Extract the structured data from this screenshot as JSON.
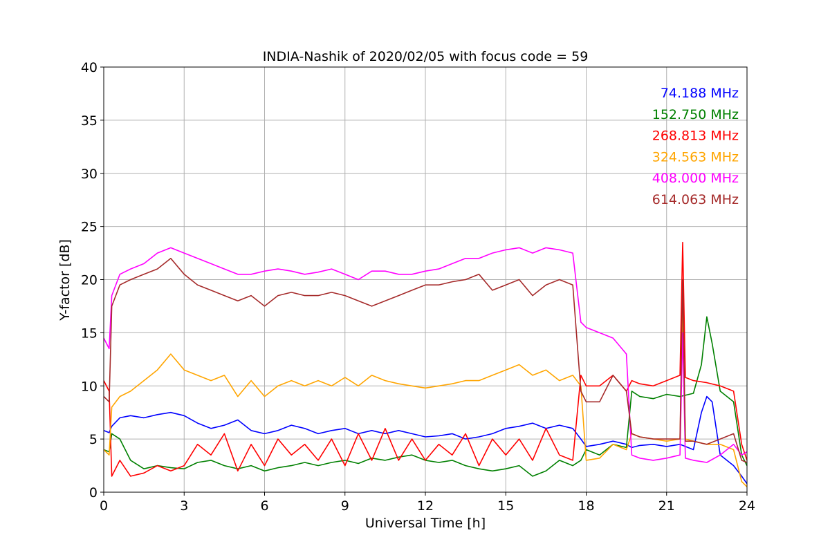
{
  "chart_data": {
    "type": "line",
    "title": "INDIA-Nashik of 2020/02/05 with focus code = 59",
    "xlabel": "Universal Time [h]",
    "ylabel": "Y-factor [dB]",
    "xlim": [
      0,
      24
    ],
    "ylim": [
      0,
      40
    ],
    "xticks": [
      0,
      3,
      6,
      9,
      12,
      15,
      18,
      21,
      24
    ],
    "yticks": [
      0,
      5,
      10,
      15,
      20,
      25,
      30,
      35,
      40
    ],
    "grid": true,
    "legend_position": "top-right",
    "series": [
      {
        "name": "74.188 MHz",
        "color": "#0000ff",
        "x": [
          0,
          0.2,
          0.3,
          0.6,
          1.0,
          1.5,
          2.0,
          2.5,
          3.0,
          3.5,
          4.0,
          4.5,
          5.0,
          5.5,
          6.0,
          6.5,
          7.0,
          7.5,
          8.0,
          8.5,
          9.0,
          9.5,
          10.0,
          10.5,
          11.0,
          11.5,
          12.0,
          12.5,
          13.0,
          13.5,
          14.0,
          14.5,
          15.0,
          15.5,
          16.0,
          16.5,
          17.0,
          17.5,
          17.8,
          18.0,
          18.5,
          19.0,
          19.5,
          19.7,
          20.0,
          20.5,
          21.0,
          21.5,
          22.0,
          22.3,
          22.5,
          22.7,
          23.0,
          23.5,
          23.8,
          24.0
        ],
        "y": [
          5.8,
          5.6,
          6.2,
          7.0,
          7.2,
          7.0,
          7.3,
          7.5,
          7.2,
          6.5,
          6.0,
          6.3,
          6.8,
          5.8,
          5.5,
          5.8,
          6.3,
          6.0,
          5.5,
          5.8,
          6.0,
          5.5,
          5.8,
          5.5,
          5.8,
          5.5,
          5.2,
          5.3,
          5.5,
          5.0,
          5.2,
          5.5,
          6.0,
          6.2,
          6.5,
          6.0,
          6.3,
          6.0,
          5.0,
          4.3,
          4.5,
          4.8,
          4.5,
          4.2,
          4.4,
          4.5,
          4.3,
          4.5,
          4.0,
          7.5,
          9.0,
          8.5,
          3.5,
          2.5,
          1.5,
          0.8
        ]
      },
      {
        "name": "152.750 MHz",
        "color": "#008000",
        "x": [
          0,
          0.2,
          0.3,
          0.6,
          1.0,
          1.5,
          2.0,
          2.5,
          3.0,
          3.5,
          4.0,
          4.5,
          5.0,
          5.5,
          6.0,
          6.5,
          7.0,
          7.5,
          8.0,
          8.5,
          9.0,
          9.5,
          10.0,
          10.5,
          11.0,
          11.5,
          12.0,
          12.5,
          13.0,
          13.5,
          14.0,
          14.5,
          15.0,
          15.5,
          16.0,
          16.5,
          17.0,
          17.5,
          17.8,
          18.0,
          18.5,
          19.0,
          19.5,
          19.7,
          20.0,
          20.5,
          21.0,
          21.5,
          22.0,
          22.3,
          22.5,
          22.7,
          23.0,
          23.5,
          23.8,
          24.0
        ],
        "y": [
          4.0,
          3.8,
          5.5,
          5.0,
          3.0,
          2.2,
          2.5,
          2.3,
          2.2,
          2.8,
          3.0,
          2.5,
          2.2,
          2.5,
          2.0,
          2.3,
          2.5,
          2.8,
          2.5,
          2.8,
          3.0,
          2.7,
          3.2,
          3.0,
          3.3,
          3.5,
          3.0,
          2.8,
          3.0,
          2.5,
          2.2,
          2.0,
          2.2,
          2.5,
          1.5,
          2.0,
          3.0,
          2.5,
          3.0,
          4.0,
          3.5,
          4.5,
          4.2,
          9.5,
          9.0,
          8.8,
          9.2,
          9.0,
          9.3,
          12.0,
          16.5,
          14.0,
          9.5,
          8.5,
          3.5,
          2.5
        ]
      },
      {
        "name": "268.813 MHz",
        "color": "#ff0000",
        "x": [
          0,
          0.2,
          0.3,
          0.6,
          1.0,
          1.5,
          2.0,
          2.5,
          3.0,
          3.5,
          4.0,
          4.5,
          5.0,
          5.5,
          6.0,
          6.5,
          7.0,
          7.5,
          8.0,
          8.5,
          9.0,
          9.5,
          10.0,
          10.5,
          11.0,
          11.5,
          12.0,
          12.5,
          13.0,
          13.5,
          14.0,
          14.5,
          15.0,
          15.5,
          16.0,
          16.5,
          17.0,
          17.5,
          17.8,
          18.0,
          18.5,
          19.0,
          19.5,
          19.7,
          20.0,
          20.5,
          21.0,
          21.5,
          21.6,
          21.7,
          22.0,
          22.5,
          23.0,
          23.5,
          23.8,
          24.0
        ],
        "y": [
          10.5,
          9.5,
          1.5,
          3.0,
          1.5,
          1.8,
          2.5,
          2.0,
          2.5,
          4.5,
          3.5,
          5.5,
          2.0,
          4.5,
          2.5,
          5.0,
          3.5,
          4.5,
          3.0,
          5.0,
          2.5,
          5.5,
          3.0,
          6.0,
          3.0,
          5.0,
          3.0,
          4.5,
          3.5,
          5.5,
          2.5,
          5.0,
          3.5,
          5.0,
          3.0,
          6.0,
          3.5,
          3.0,
          11.0,
          10.0,
          10.0,
          11.0,
          9.5,
          10.5,
          10.2,
          10.0,
          10.5,
          11.0,
          23.5,
          10.8,
          10.5,
          10.3,
          10.0,
          9.5,
          4.5,
          3.0
        ]
      },
      {
        "name": "324.563 MHz",
        "color": "#ffa500",
        "x": [
          0,
          0.2,
          0.3,
          0.6,
          1.0,
          1.5,
          2.0,
          2.5,
          3.0,
          3.5,
          4.0,
          4.5,
          5.0,
          5.5,
          6.0,
          6.5,
          7.0,
          7.5,
          8.0,
          8.5,
          9.0,
          9.5,
          10.0,
          10.5,
          11.0,
          11.5,
          12.0,
          12.5,
          13.0,
          13.5,
          14.0,
          14.5,
          15.0,
          15.5,
          16.0,
          16.5,
          17.0,
          17.5,
          17.8,
          18.0,
          18.5,
          19.0,
          19.5,
          19.7,
          20.0,
          20.5,
          21.0,
          21.5,
          21.6,
          21.7,
          22.0,
          22.5,
          23.0,
          23.5,
          23.8,
          24.0
        ],
        "y": [
          4.0,
          3.5,
          8.0,
          9.0,
          9.5,
          10.5,
          11.5,
          13.0,
          11.5,
          11.0,
          10.5,
          11.0,
          9.0,
          10.5,
          9.0,
          10.0,
          10.5,
          10.0,
          10.5,
          10.0,
          10.8,
          10.0,
          11.0,
          10.5,
          10.2,
          10.0,
          9.8,
          10.0,
          10.2,
          10.5,
          10.5,
          11.0,
          11.5,
          12.0,
          11.0,
          11.5,
          10.5,
          11.0,
          10.0,
          3.0,
          3.2,
          4.5,
          4.0,
          5.5,
          5.2,
          5.0,
          4.8,
          5.0,
          17.5,
          5.0,
          4.8,
          4.5,
          4.5,
          4.0,
          1.0,
          0.5
        ]
      },
      {
        "name": "408.000 MHz",
        "color": "#ff00ff",
        "x": [
          0,
          0.2,
          0.3,
          0.6,
          1.0,
          1.5,
          2.0,
          2.5,
          3.0,
          3.5,
          4.0,
          4.5,
          5.0,
          5.5,
          6.0,
          6.5,
          7.0,
          7.5,
          8.0,
          8.5,
          9.0,
          9.5,
          10.0,
          10.5,
          11.0,
          11.5,
          12.0,
          12.5,
          13.0,
          13.5,
          14.0,
          14.5,
          15.0,
          15.5,
          16.0,
          16.5,
          17.0,
          17.5,
          17.8,
          18.0,
          18.5,
          19.0,
          19.5,
          19.7,
          20.0,
          20.5,
          21.0,
          21.5,
          21.6,
          21.7,
          22.0,
          22.5,
          23.0,
          23.5,
          23.8,
          24.0
        ],
        "y": [
          14.5,
          13.5,
          18.5,
          20.5,
          21.0,
          21.5,
          22.5,
          23.0,
          22.5,
          22.0,
          21.5,
          21.0,
          20.5,
          20.5,
          20.8,
          21.0,
          20.8,
          20.5,
          20.7,
          21.0,
          20.5,
          20.0,
          20.8,
          20.8,
          20.5,
          20.5,
          20.8,
          21.0,
          21.5,
          22.0,
          22.0,
          22.5,
          22.8,
          23.0,
          22.5,
          23.0,
          22.8,
          22.5,
          16.0,
          15.5,
          15.0,
          14.5,
          13.0,
          3.5,
          3.2,
          3.0,
          3.2,
          3.5,
          15.0,
          3.2,
          3.0,
          2.8,
          3.5,
          4.5,
          3.5,
          3.8
        ]
      },
      {
        "name": "614.063 MHz",
        "color": "#a52a2a",
        "x": [
          0,
          0.2,
          0.3,
          0.6,
          1.0,
          1.5,
          2.0,
          2.5,
          3.0,
          3.5,
          4.0,
          4.5,
          5.0,
          5.5,
          6.0,
          6.5,
          7.0,
          7.5,
          8.0,
          8.5,
          9.0,
          9.5,
          10.0,
          10.5,
          11.0,
          11.5,
          12.0,
          12.5,
          13.0,
          13.5,
          14.0,
          14.5,
          15.0,
          15.5,
          16.0,
          16.5,
          17.0,
          17.5,
          17.8,
          18.0,
          18.5,
          19.0,
          19.5,
          19.7,
          20.0,
          20.5,
          21.0,
          21.5,
          21.6,
          21.7,
          22.0,
          22.5,
          23.0,
          23.5,
          23.8,
          24.0
        ],
        "y": [
          9.0,
          8.5,
          17.5,
          19.5,
          20.0,
          20.5,
          21.0,
          22.0,
          20.5,
          19.5,
          19.0,
          18.5,
          18.0,
          18.5,
          17.5,
          18.5,
          18.8,
          18.5,
          18.5,
          18.8,
          18.5,
          18.0,
          17.5,
          18.0,
          18.5,
          19.0,
          19.5,
          19.5,
          19.8,
          20.0,
          20.5,
          19.0,
          19.5,
          20.0,
          18.5,
          19.5,
          20.0,
          19.5,
          9.5,
          8.5,
          8.5,
          11.0,
          9.5,
          5.5,
          5.2,
          5.0,
          5.0,
          5.0,
          20.0,
          4.8,
          4.8,
          4.5,
          5.0,
          5.5,
          3.0,
          2.8
        ]
      }
    ]
  }
}
